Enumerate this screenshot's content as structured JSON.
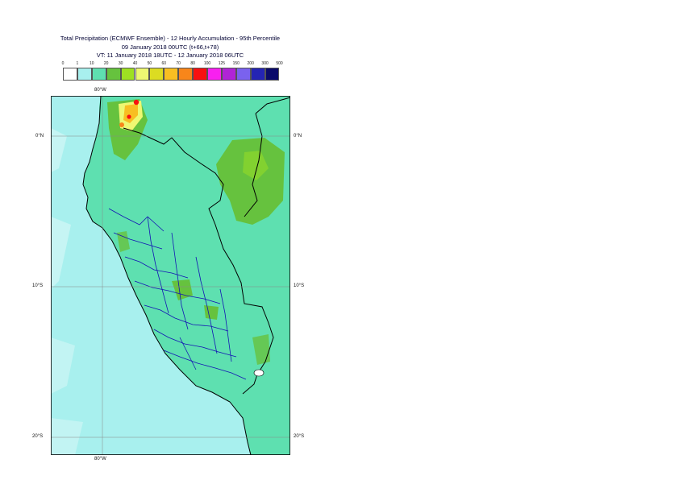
{
  "header": {
    "line1": "Total Precipitation (ECMWF Ensemble) - 12 Hourly Accumulation - 95th Percentile",
    "line2": "09 January 2018 00UTC (t+66,t+78)",
    "line3": "VT: 11 January 2018 18UTC - 12 January 2018 06UTC"
  },
  "legend": {
    "ticks": [
      "0",
      "1",
      "10",
      "20",
      "30",
      "40",
      "50",
      "60",
      "70",
      "80",
      "100",
      "125",
      "150",
      "200",
      "300",
      "500"
    ],
    "colors": [
      "#ffffff",
      "#a8f0ee",
      "#5ee0b0",
      "#66c23e",
      "#9ee022",
      "#eef872",
      "#dcdc22",
      "#f8be22",
      "#f8861a",
      "#f81010",
      "#f820f0",
      "#b024d6",
      "#7a62ee",
      "#2424b4",
      "#0a0a6a"
    ]
  },
  "axes": {
    "lon_top": "80°W",
    "lon_bottom": "80°W",
    "lat_left": [
      "0°N",
      "10°S",
      "20°S"
    ],
    "lat_right": [
      "0°N",
      "10°S",
      "20°S"
    ]
  },
  "map_colors": {
    "ocean": "#a8f0ee",
    "land_low": "#5ee0b0",
    "land_mid": "#66c23e",
    "hot": "#f81010",
    "border": "#000000",
    "region": "#1414b4"
  }
}
